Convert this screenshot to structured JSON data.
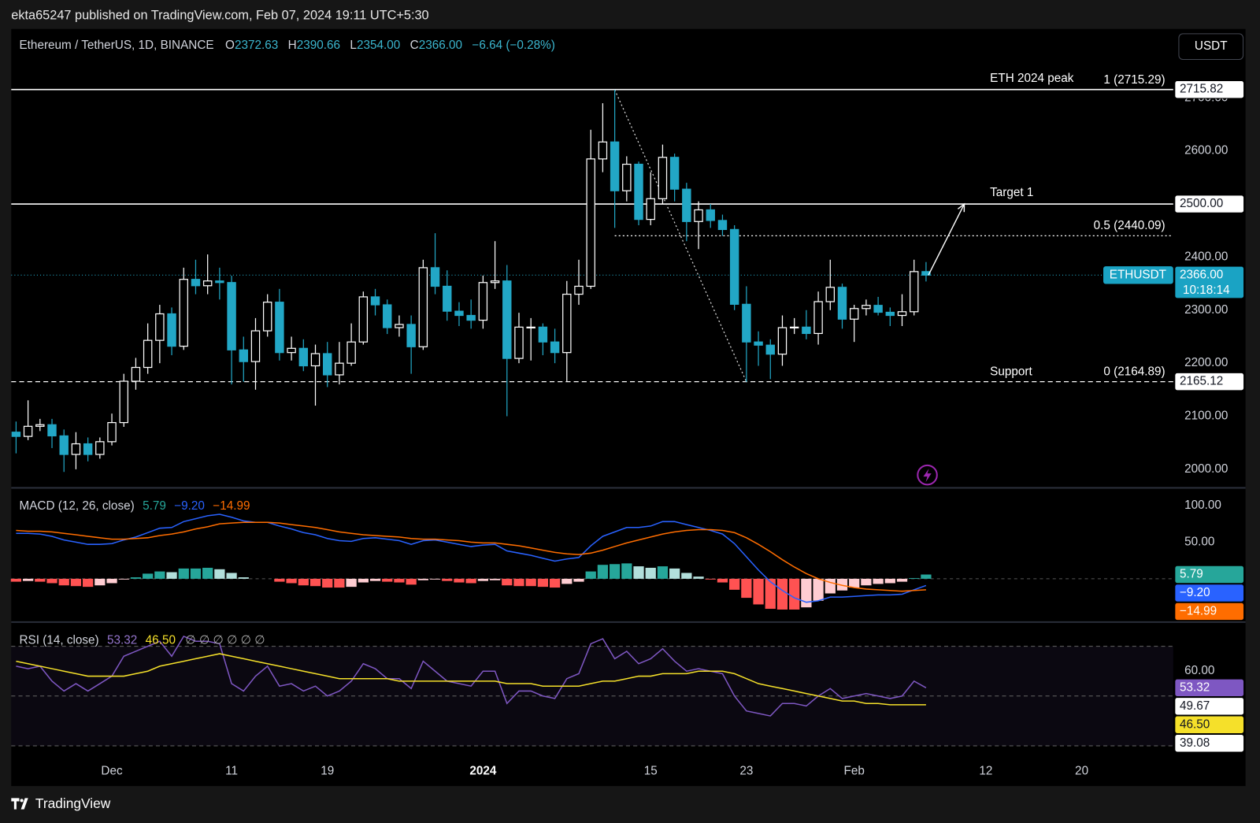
{
  "header": {
    "publisher": "ekta65247 published on TradingView.com, Feb 07, 2024 19:11 UTC+5:30",
    "symbol": "Ethereum / TetherUS, 1D, BINANCE",
    "ohlc": [
      {
        "key": "O",
        "text": "2372.63"
      },
      {
        "key": "H",
        "text": "2390.66"
      },
      {
        "key": "L",
        "text": "2354.00"
      },
      {
        "key": "C",
        "text": "2366.00"
      }
    ],
    "change": "−6.64 (−0.28%)",
    "currency": "USDT"
  },
  "annotations": {
    "peak": "ETH 2024 peak",
    "peak_level": "1 (2715.29)",
    "target": "Target 1",
    "mid_level": "0.5 (2440.09)",
    "support": "Support",
    "support_level": "0 (2164.89)"
  },
  "footer": {
    "brand": "TradingView"
  },
  "chart_data": [
    {
      "type": "candlestick",
      "up_color": "#ffffff",
      "down_color": "#22a7c6",
      "x": [
        "2023-11-23",
        "2023-11-24",
        "2023-11-25",
        "2023-11-26",
        "2023-11-27",
        "2023-11-28",
        "2023-11-29",
        "2023-11-30",
        "2023-12-01",
        "2023-12-02",
        "2023-12-03",
        "2023-12-04",
        "2023-12-05",
        "2023-12-06",
        "2023-12-07",
        "2023-12-08",
        "2023-12-09",
        "2023-12-10",
        "2023-12-11",
        "2023-12-12",
        "2023-12-13",
        "2023-12-14",
        "2023-12-15",
        "2023-12-16",
        "2023-12-17",
        "2023-12-18",
        "2023-12-19",
        "2023-12-20",
        "2023-12-21",
        "2023-12-22",
        "2023-12-23",
        "2023-12-24",
        "2023-12-25",
        "2023-12-26",
        "2023-12-27",
        "2023-12-28",
        "2023-12-29",
        "2023-12-30",
        "2023-12-31",
        "2024-01-01",
        "2024-01-02",
        "2024-01-03",
        "2024-01-04",
        "2024-01-05",
        "2024-01-06",
        "2024-01-07",
        "2024-01-08",
        "2024-01-09",
        "2024-01-10",
        "2024-01-11",
        "2024-01-12",
        "2024-01-13",
        "2024-01-14",
        "2024-01-15",
        "2024-01-16",
        "2024-01-17",
        "2024-01-18",
        "2024-01-19",
        "2024-01-20",
        "2024-01-21",
        "2024-01-22",
        "2024-01-23",
        "2024-01-24",
        "2024-01-25",
        "2024-01-26",
        "2024-01-27",
        "2024-01-28",
        "2024-01-29",
        "2024-01-30",
        "2024-01-31",
        "2024-02-01",
        "2024-02-02",
        "2024-02-03",
        "2024-02-04",
        "2024-02-05",
        "2024-02-06",
        "2024-02-07"
      ],
      "open": [
        2070,
        2062,
        2081,
        2084,
        2063,
        2028,
        2048,
        2028,
        2052,
        2088,
        2166,
        2192,
        2243,
        2293,
        2232,
        2358,
        2346,
        2355,
        2352,
        2225,
        2203,
        2261,
        2315,
        2220,
        2228,
        2195,
        2218,
        2178,
        2200,
        2240,
        2325,
        2310,
        2267,
        2273,
        2231,
        2380,
        2345,
        2298,
        2290,
        2281,
        2352,
        2355,
        2209,
        2268,
        2268,
        2240,
        2220,
        2330,
        2345,
        2585,
        2617,
        2525,
        2575,
        2471,
        2510,
        2588,
        2528,
        2467,
        2489,
        2469,
        2452,
        2311,
        2240,
        2234,
        2217,
        2267,
        2268,
        2256,
        2316,
        2343,
        2283,
        2303,
        2309,
        2296,
        2290,
        2297,
        2372.63
      ],
      "high": [
        2090,
        2130,
        2095,
        2095,
        2075,
        2070,
        2060,
        2060,
        2105,
        2180,
        2210,
        2275,
        2310,
        2305,
        2380,
        2395,
        2405,
        2380,
        2365,
        2250,
        2285,
        2330,
        2340,
        2250,
        2245,
        2235,
        2240,
        2240,
        2275,
        2335,
        2340,
        2320,
        2290,
        2290,
        2395,
        2445,
        2375,
        2315,
        2320,
        2365,
        2430,
        2385,
        2295,
        2285,
        2275,
        2265,
        2355,
        2395,
        2640,
        2690,
        2715.29,
        2590,
        2580,
        2560,
        2612,
        2595,
        2540,
        2505,
        2500,
        2480,
        2460,
        2345,
        2260,
        2245,
        2290,
        2285,
        2300,
        2335,
        2395,
        2350,
        2310,
        2320,
        2325,
        2305,
        2330,
        2395,
        2390.66
      ],
      "low": [
        2030,
        2055,
        2072,
        2040,
        1995,
        2000,
        2015,
        2020,
        2045,
        2080,
        2150,
        2180,
        2200,
        2215,
        2225,
        2330,
        2330,
        2320,
        2160,
        2165,
        2150,
        2250,
        2205,
        2205,
        2185,
        2120,
        2155,
        2160,
        2195,
        2235,
        2290,
        2255,
        2250,
        2180,
        2225,
        2330,
        2280,
        2270,
        2265,
        2265,
        2340,
        2100,
        2200,
        2205,
        2215,
        2200,
        2165,
        2310,
        2340,
        2560,
        2455,
        2505,
        2460,
        2460,
        2500,
        2505,
        2430,
        2415,
        2455,
        2440,
        2300,
        2164.89,
        2195,
        2170,
        2195,
        2255,
        2245,
        2235,
        2300,
        2265,
        2240,
        2290,
        2290,
        2270,
        2270,
        2290,
        2354
      ],
      "close": [
        2062,
        2081,
        2084,
        2063,
        2028,
        2048,
        2028,
        2052,
        2088,
        2166,
        2192,
        2243,
        2293,
        2232,
        2358,
        2346,
        2355,
        2352,
        2225,
        2203,
        2261,
        2315,
        2220,
        2228,
        2195,
        2218,
        2178,
        2200,
        2240,
        2325,
        2310,
        2267,
        2273,
        2231,
        2380,
        2345,
        2298,
        2290,
        2281,
        2352,
        2355,
        2209,
        2268,
        2268,
        2240,
        2220,
        2330,
        2345,
        2585,
        2617,
        2525,
        2575,
        2471,
        2510,
        2588,
        2528,
        2467,
        2489,
        2469,
        2452,
        2311,
        2240,
        2234,
        2217,
        2267,
        2268,
        2256,
        2316,
        2343,
        2283,
        2303,
        2309,
        2296,
        2290,
        2297,
        2372.63,
        2366
      ],
      "ylim": [
        1965,
        2827
      ],
      "yticks": [
        {
          "value": 2000,
          "label": "2000.00"
        },
        {
          "value": 2100,
          "label": "2100.00"
        },
        {
          "value": 2200,
          "label": "2200.00"
        },
        {
          "value": 2300,
          "label": "2300.00"
        },
        {
          "value": 2400,
          "label": "2400.00"
        },
        {
          "value": 2500,
          "label": "2500.00"
        },
        {
          "value": 2600,
          "label": "2600.00"
        },
        {
          "value": 2700,
          "label": "2700.00"
        }
      ],
      "xticks": [
        {
          "value": "2023-12-01",
          "label": "Dec"
        },
        {
          "value": "2023-12-11",
          "label": "11"
        },
        {
          "value": "2023-12-19",
          "label": "19"
        },
        {
          "value": "2024-01-01",
          "label": "2024",
          "bold": true
        },
        {
          "value": "2024-01-15",
          "label": "15"
        },
        {
          "value": "2024-01-23",
          "label": "23"
        },
        {
          "value": "2024-02-01",
          "label": "Feb"
        },
        {
          "value": "2024-02-12",
          "label": "12"
        },
        {
          "value": "2024-02-20",
          "label": "20"
        }
      ],
      "levels": [
        {
          "value": 2715.82,
          "style": "solid"
        },
        {
          "value": 2500,
          "style": "solid"
        },
        {
          "value": 2440.09,
          "style": "dotted",
          "from": "2024-01-12"
        },
        {
          "value": 2165.12,
          "style": "dashed"
        }
      ],
      "fib_span": [
        "2024-01-12",
        "2024-01-23"
      ],
      "last_color": "#22a7c6",
      "tags": [
        {
          "value": 2715.82,
          "label": "2715.82",
          "color": "#ffffff"
        },
        {
          "value": 2500,
          "label": "2500.00",
          "color": "#ffffff"
        },
        {
          "value": 2366,
          "label": "2366.00",
          "countdown": "10:18:14",
          "symbol": "ETHUSDT",
          "color": "#1aa3c4"
        },
        {
          "value": 2165.12,
          "label": "2165.12",
          "color": "#ffffff"
        }
      ]
    },
    {
      "type": "macd",
      "title": "MACD (12, 26, close)",
      "ylim": [
        -58,
        123
      ],
      "yticks": [
        {
          "value": 50,
          "label": "50.00"
        },
        {
          "value": 100,
          "label": "100.00"
        }
      ],
      "levels": [
        0
      ],
      "histogram": {
        "values": [
          -4,
          -3,
          -4,
          -6,
          -9,
          -10,
          -11,
          -9,
          -6,
          -1,
          2,
          7,
          10,
          9,
          14,
          14,
          15,
          13,
          8,
          2,
          0,
          0,
          -4,
          -6,
          -9,
          -10,
          -12,
          -12,
          -11,
          -5,
          -3,
          -4,
          -5,
          -8,
          -2,
          -1,
          -3,
          -5,
          -6,
          -3,
          -2,
          -9,
          -10,
          -10,
          -11,
          -12,
          -7,
          -4,
          10,
          19,
          20,
          21,
          17,
          15,
          17,
          14,
          8,
          3,
          -1,
          -5,
          -15,
          -26,
          -35,
          -41,
          -42,
          -42,
          -39,
          -30,
          -20,
          -16,
          -12,
          -9,
          -7,
          -6,
          -4,
          1,
          5.79
        ],
        "colors": {
          "positive_rising": "#26a69a",
          "positive_falling": "#b2dfdb",
          "negative_falling": "#ff5252",
          "negative_rising": "#ffcdd2"
        }
      },
      "series": [
        {
          "color": "#2962ff",
          "values": [
            62,
            62,
            61,
            58,
            53,
            50,
            47,
            47,
            48,
            53,
            57,
            63,
            69,
            70,
            78,
            82,
            86,
            88,
            84,
            79,
            77,
            77,
            72,
            68,
            63,
            60,
            55,
            52,
            51,
            55,
            56,
            54,
            52,
            47,
            52,
            53,
            50,
            47,
            44,
            46,
            47,
            38,
            35,
            32,
            28,
            24,
            27,
            29,
            45,
            58,
            64,
            70,
            70,
            72,
            78,
            78,
            74,
            70,
            66,
            61,
            48,
            30,
            12,
            -4,
            -16,
            -26,
            -32,
            -30,
            -25,
            -25,
            -24,
            -23,
            -22,
            -22,
            -21,
            -15,
            -9.2
          ]
        },
        {
          "color": "#ff6d00",
          "values": [
            66,
            65,
            65,
            64,
            62,
            60,
            58,
            56,
            54,
            54,
            55,
            56,
            59,
            61,
            64,
            68,
            71,
            75,
            76,
            77,
            77,
            77,
            76,
            74,
            72,
            70,
            67,
            64,
            62,
            60,
            59,
            58,
            57,
            55,
            54,
            54,
            53,
            52,
            50,
            49,
            49,
            47,
            45,
            42,
            39,
            36,
            34,
            33,
            35,
            39,
            44,
            49,
            53,
            57,
            61,
            64,
            66,
            67,
            67,
            66,
            63,
            56,
            47,
            37,
            26,
            16,
            7,
            0,
            -5,
            -9,
            -12,
            -14,
            -15,
            -16,
            -17,
            -16,
            -14.99
          ]
        }
      ],
      "tags": [
        {
          "value": 5.79,
          "label": "5.79",
          "color": "#26a69a"
        },
        {
          "value": -9.2,
          "label": "−9.20",
          "color": "#2962ff"
        },
        {
          "value": -14.99,
          "label": "−14.99",
          "color": "#ff6d00"
        }
      ]
    },
    {
      "type": "rsi",
      "title": "RSI (14, close)",
      "nulls": "∅ ∅ ∅ ∅ ∅ ∅",
      "ylim": [
        24.5,
        79.4
      ],
      "yticks": [
        {
          "value": 60,
          "label": "60.00"
        }
      ],
      "levels": [
        70,
        50,
        30
      ],
      "band_color": "#7e57c2",
      "series": [
        {
          "color": "#7e57c2",
          "values": [
            62,
            61,
            62,
            56,
            52,
            55,
            52,
            55,
            58,
            66,
            68,
            70,
            72,
            66,
            74,
            72,
            72,
            71,
            55,
            52,
            58,
            62,
            54,
            55,
            52,
            54,
            50,
            52,
            56,
            63,
            61,
            57,
            57,
            53,
            64,
            60,
            56,
            55,
            54,
            60,
            60,
            47,
            52,
            52,
            50,
            49,
            57,
            59,
            71,
            73,
            65,
            68,
            63,
            65,
            69,
            64,
            60,
            61,
            60,
            59,
            50,
            44,
            43,
            42,
            47,
            47,
            46,
            50,
            53,
            49,
            50,
            51,
            50,
            49,
            50,
            56,
            53.32
          ]
        },
        {
          "color": "#f5e02a",
          "values": [
            64,
            63,
            62,
            61,
            60,
            59,
            58,
            58,
            58,
            58,
            59,
            60,
            62,
            63,
            64,
            65,
            66,
            67,
            66,
            65,
            64,
            63,
            62,
            61,
            60,
            59,
            58,
            57,
            57,
            57,
            57,
            57,
            56,
            56,
            56,
            56,
            56,
            56,
            56,
            56,
            56,
            55,
            55,
            55,
            54,
            54,
            54,
            54,
            55,
            56,
            56,
            57,
            58,
            58,
            59,
            59,
            59,
            60,
            60,
            60,
            59,
            57,
            55,
            54,
            53,
            52,
            51,
            50,
            49,
            48,
            48,
            47,
            47,
            46.5,
            46.5,
            46.5,
            46.5
          ]
        }
      ],
      "tags": [
        {
          "value": 53.32,
          "label": "53.32",
          "color": "#7e57c2"
        },
        {
          "value": 49.67,
          "label": "49.67",
          "color": "#ffffff"
        },
        {
          "value": 46.5,
          "label": "46.50",
          "color": "#f5e02a"
        },
        {
          "value": 39.08,
          "label": "39.08",
          "color": "#ffffff"
        }
      ]
    }
  ]
}
